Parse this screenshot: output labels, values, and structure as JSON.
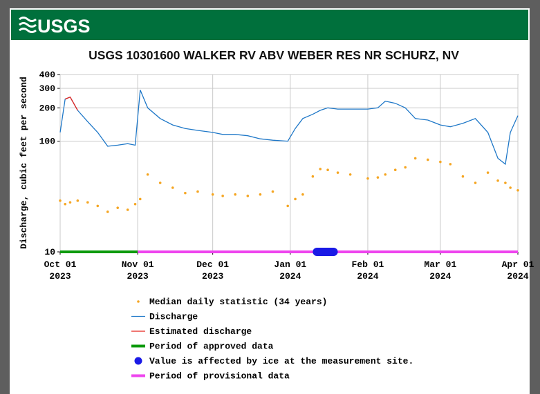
{
  "header": {
    "logo": "USGS"
  },
  "chart_data": {
    "type": "line",
    "title": "USGS 10301600 WALKER RV ABV WEBER RES NR SCHURZ, NV",
    "ylabel": "Discharge, cubic feet per second",
    "log_y": true,
    "grid": true,
    "ylim": [
      10,
      400
    ],
    "yticks": [
      10,
      100,
      200,
      300,
      400
    ],
    "xlim": [
      "2023-10-01",
      "2024-04-01"
    ],
    "xticks": [
      {
        "value": "2023-10-01",
        "label": [
          "Oct 01",
          "2023"
        ]
      },
      {
        "value": "2023-11-01",
        "label": [
          "Nov 01",
          "2023"
        ]
      },
      {
        "value": "2023-12-01",
        "label": [
          "Dec 01",
          "2023"
        ]
      },
      {
        "value": "2024-01-01",
        "label": [
          "Jan 01",
          "2024"
        ]
      },
      {
        "value": "2024-02-01",
        "label": [
          "Feb 01",
          "2024"
        ]
      },
      {
        "value": "2024-03-01",
        "label": [
          "Mar 01",
          "2024"
        ]
      },
      {
        "value": "2024-04-01",
        "label": [
          "Apr 01",
          "2024"
        ]
      }
    ],
    "x": [
      "2023-10-01",
      "2023-10-03",
      "2023-10-05",
      "2023-10-08",
      "2023-10-12",
      "2023-10-16",
      "2023-10-20",
      "2023-10-24",
      "2023-10-28",
      "2023-10-31",
      "2023-11-02",
      "2023-11-05",
      "2023-11-10",
      "2023-11-15",
      "2023-11-20",
      "2023-11-25",
      "2023-12-01",
      "2023-12-05",
      "2023-12-10",
      "2023-12-15",
      "2023-12-20",
      "2023-12-25",
      "2023-12-31",
      "2024-01-03",
      "2024-01-06",
      "2024-01-10",
      "2024-01-13",
      "2024-01-16",
      "2024-01-20",
      "2024-01-25",
      "2024-02-01",
      "2024-02-05",
      "2024-02-08",
      "2024-02-12",
      "2024-02-16",
      "2024-02-20",
      "2024-02-25",
      "2024-03-01",
      "2024-03-05",
      "2024-03-10",
      "2024-03-15",
      "2024-03-20",
      "2024-03-24",
      "2024-03-27",
      "2024-03-29",
      "2024-04-01"
    ],
    "series": [
      {
        "name": "Median daily statistic (34 years)",
        "color": "#f5a623",
        "style": "points",
        "values": [
          29,
          27,
          28,
          29,
          28,
          26,
          23,
          25,
          24,
          27,
          30,
          50,
          42,
          38,
          34,
          35,
          33,
          32,
          33,
          32,
          33,
          35,
          26,
          30,
          33,
          48,
          56,
          55,
          52,
          50,
          46,
          47,
          50,
          55,
          58,
          70,
          68,
          65,
          62,
          48,
          42,
          52,
          44,
          42,
          38,
          36
        ]
      },
      {
        "name": "Discharge",
        "color": "#1f78c8",
        "style": "line",
        "values": [
          120,
          240,
          250,
          190,
          150,
          120,
          90,
          92,
          95,
          92,
          290,
          200,
          160,
          140,
          130,
          125,
          120,
          115,
          115,
          112,
          105,
          102,
          100,
          130,
          160,
          175,
          190,
          200,
          195,
          195,
          195,
          200,
          230,
          220,
          200,
          160,
          155,
          140,
          135,
          145,
          160,
          120,
          70,
          62,
          120,
          170
        ]
      },
      {
        "name": "Estimated discharge",
        "color": "#e8241c",
        "style": "line",
        "values": [
          null,
          240,
          250,
          190,
          null,
          null,
          null,
          null,
          null,
          null,
          null,
          null,
          null,
          null,
          null,
          null,
          null,
          null,
          null,
          null,
          null,
          null,
          null,
          null,
          null,
          null,
          null,
          null,
          null,
          null,
          null,
          null,
          null,
          null,
          null,
          null,
          null,
          null,
          null,
          null,
          null,
          null,
          null,
          null,
          null,
          null
        ]
      }
    ],
    "periods": [
      {
        "name": "Period of approved data",
        "color": "#0c9a0c",
        "start": "2023-10-01",
        "end": "2023-11-01"
      },
      {
        "name": "Value is affected by ice at the measurement site.",
        "color": "#1a1ae6",
        "start": "2024-01-10",
        "end": "2024-01-20",
        "marker": "round"
      },
      {
        "name": "Period of provisional data",
        "color": "#ee44ee",
        "start": "2023-11-01",
        "end": "2024-04-01"
      }
    ]
  }
}
